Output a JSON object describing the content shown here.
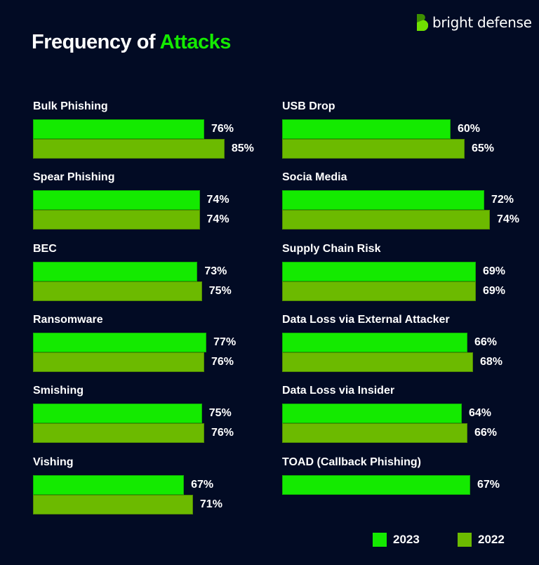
{
  "title": {
    "part1": "Frequency of ",
    "part2": "Attacks"
  },
  "logo": {
    "text": "bright defense"
  },
  "colors": {
    "background": "#020b24",
    "2023": "#14ea00",
    "2022": "#6cba00",
    "accent": "#14ea00"
  },
  "chart_data": {
    "type": "bar",
    "orientation": "horizontal",
    "unit": "%",
    "legend": {
      "placement": "bottom-right",
      "entries": [
        "2023",
        "2022"
      ]
    },
    "panels": [
      {
        "categories": [
          {
            "name": "Bulk Phishing",
            "values": {
              "2023": 76,
              "2022": 85
            }
          },
          {
            "name": "Spear Phishing",
            "values": {
              "2023": 74,
              "2022": 74
            }
          },
          {
            "name": "BEC",
            "values": {
              "2023": 73,
              "2022": 75
            }
          },
          {
            "name": "Ransomware",
            "values": {
              "2023": 77,
              "2022": 76
            }
          },
          {
            "name": "Smishing",
            "values": {
              "2023": 75,
              "2022": 76
            }
          },
          {
            "name": "Vishing",
            "values": {
              "2023": 67,
              "2022": 71
            }
          }
        ]
      },
      {
        "categories": [
          {
            "name": "USB Drop",
            "values": {
              "2023": 60,
              "2022": 65
            }
          },
          {
            "name": "Socia Media",
            "values": {
              "2023": 72,
              "2022": 74
            }
          },
          {
            "name": "Supply Chain Risk",
            "values": {
              "2023": 69,
              "2022": 69
            }
          },
          {
            "name": "Data Loss via External Attacker",
            "values": {
              "2023": 66,
              "2022": 68
            }
          },
          {
            "name": "Data Loss via Insider",
            "values": {
              "2023": 64,
              "2022": 66
            }
          },
          {
            "name": "TOAD (Callback Phishing)",
            "values": {
              "2023": 67
            }
          }
        ]
      }
    ]
  }
}
